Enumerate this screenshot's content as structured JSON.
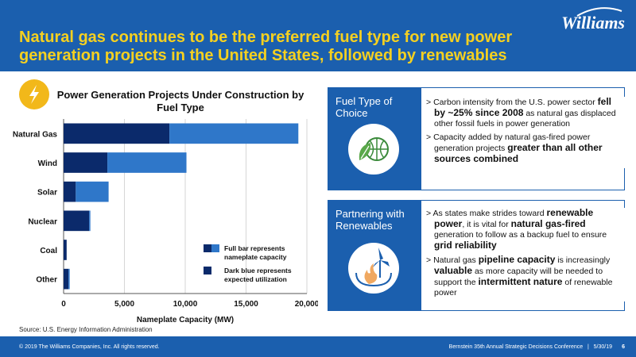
{
  "header": {
    "title": "Natural gas continues to be the preferred fuel type for new power generation projects in the United States, followed by renewables",
    "logo": "Williams",
    "bg_color": "#1b5fae",
    "title_color": "#f5d020"
  },
  "chart_icon": "lightning-bolt-icon",
  "chart_data": {
    "type": "bar",
    "orientation": "horizontal",
    "stacked": true,
    "title": "Power Generation Projects Under Construction by Fuel Type",
    "xlabel": "Nameplate Capacity (MW)",
    "ylabel": "",
    "xlim": [
      0,
      20000
    ],
    "xticks": [
      0,
      5000,
      10000,
      15000,
      20000
    ],
    "xtick_labels": [
      "0",
      "5,000",
      "10,000",
      "15,000",
      "20,000"
    ],
    "grid": true,
    "categories": [
      "Natural Gas",
      "Wind",
      "Solar",
      "Nuclear",
      "Coal",
      "Other"
    ],
    "series": [
      {
        "values": [
          8700,
          3600,
          1000,
          2100,
          250,
          400
        ],
        "color": "#0b2a6b"
      },
      {
        "values": [
          10600,
          6500,
          2700,
          100,
          0,
          100
        ],
        "color": "#2f77c9"
      }
    ]
  },
  "legend": {
    "full_label": "Full bar represents nameplate capacity",
    "dark_label": "Dark blue represents expected utilization"
  },
  "source": "Source: U.S. Energy Information Administration",
  "panels": [
    {
      "label": "Fuel Type of Choice",
      "icon": "leaf-globe-icon",
      "bullets": [
        {
          "pre": "Carbon intensity from the U.S. power sector ",
          "bold": "fell by ~25% since 2008",
          "post": " as natural gas displaced other fossil fuels in power generation"
        },
        {
          "pre": "Capacity added by natural gas-fired power generation projects ",
          "bold": "greater than all other sources combined",
          "post": ""
        }
      ]
    },
    {
      "label": "Partnering with Renewables",
      "icon": "wind-turbine-flame-icon",
      "bullets": [
        {
          "pre": "As states make strides toward ",
          "bold": "renewable power",
          "post": ", it is vital for ",
          "bold2": "natural gas-fired",
          "post2": " generation to follow as a backup fuel to ensure ",
          "bold3": "grid reliability",
          "post3": ""
        },
        {
          "pre": "Natural gas ",
          "bold": "pipeline capacity",
          "post": " is increasingly ",
          "bold2": "valuable",
          "post2": " as more capacity will be needed to support the ",
          "bold3": "intermittent nature",
          "post3": " of renewable power"
        }
      ]
    }
  ],
  "footer": {
    "copyright": "© 2019 The Williams Companies, Inc. All rights reserved.",
    "event": "Bernstein 35th Annual Strategic Decisions Conference   |   5/30/19",
    "page": "6"
  }
}
